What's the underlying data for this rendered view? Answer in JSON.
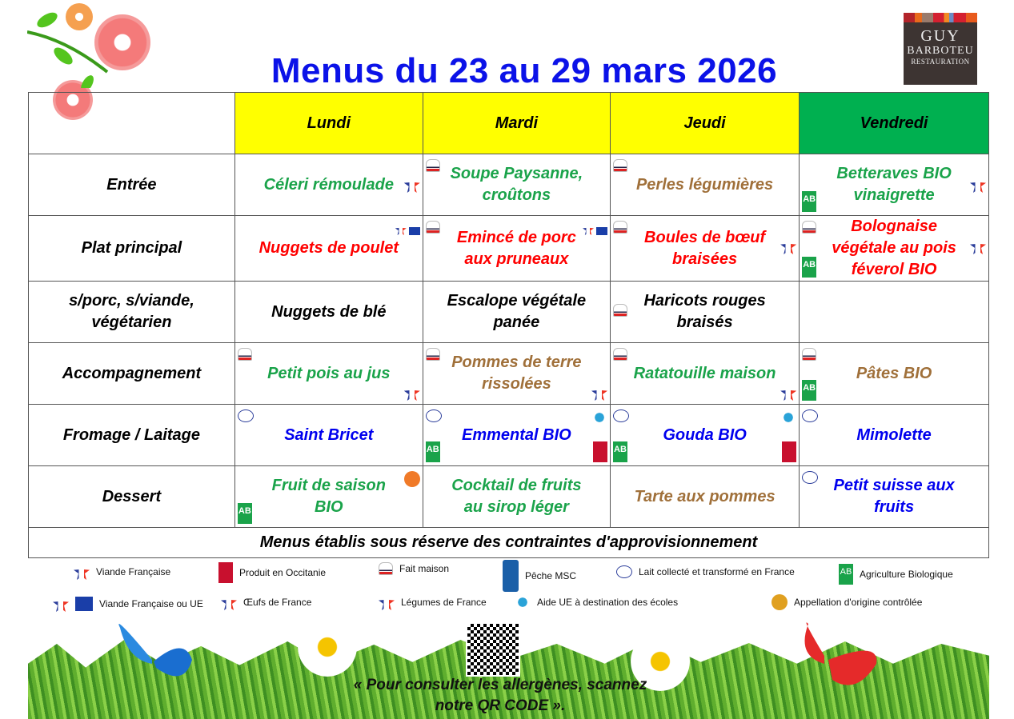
{
  "title": "Menus du 23 au 29 mars 2026",
  "logo": {
    "line1": "GUY",
    "line2": "BARBOTEU",
    "line3": "RESTAURATION"
  },
  "days": [
    "Lundi",
    "Mardi",
    "Jeudi",
    "Vendredi"
  ],
  "day_colors": [
    "#ffff00",
    "#ffff00",
    "#ffff00",
    "#00b050"
  ],
  "colors": {
    "green": "#1aa34a",
    "red": "#ff0000",
    "brown": "#a0703a",
    "blue": "#0000ee",
    "black": "#000000"
  },
  "rows": [
    {
      "label": "Entrée",
      "cells": [
        {
          "text": "Céleri rémoulade",
          "color": "green",
          "icons": [
            "legumes-de-france"
          ]
        },
        {
          "text": "Soupe Paysanne, croûtons",
          "color": "green",
          "icons": [
            "fait-maison"
          ]
        },
        {
          "text": "Perles légumières",
          "color": "brown",
          "icons": [
            "fait-maison"
          ]
        },
        {
          "text": "Betteraves BIO vinaigrette",
          "color": "green",
          "icons": [
            "agriculture-biologique",
            "legumes-de-france"
          ]
        }
      ]
    },
    {
      "label": "Plat principal",
      "cells": [
        {
          "text": "Nuggets de poulet",
          "color": "red",
          "icons": [
            "viande-francaise-ou-ue"
          ]
        },
        {
          "text": "Emincé de porc aux pruneaux",
          "color": "red",
          "icons": [
            "fait-maison",
            "viande-francaise-ou-ue"
          ]
        },
        {
          "text": "Boules de bœuf braisées",
          "color": "red",
          "icons": [
            "fait-maison",
            "viande-francaise"
          ]
        },
        {
          "text": "Bolognaise végétale au pois féverol BIO",
          "color": "red",
          "icons": [
            "fait-maison",
            "agriculture-biologique",
            "legumes-de-france"
          ]
        }
      ]
    },
    {
      "label": "s/porc, s/viande, végétarien",
      "cells": [
        {
          "text": "Nuggets de blé",
          "color": "black",
          "icons": []
        },
        {
          "text": "Escalope végétale panée",
          "color": "black",
          "icons": []
        },
        {
          "text": "Haricots rouges braisés",
          "color": "black",
          "icons": [
            "fait-maison"
          ]
        },
        {
          "text": "",
          "color": "black",
          "icons": []
        }
      ]
    },
    {
      "label": "Accompagnement",
      "cells": [
        {
          "text": "Petit pois au jus",
          "color": "green",
          "icons": [
            "fait-maison",
            "legumes-de-france"
          ]
        },
        {
          "text": "Pommes de terre rissolées",
          "color": "brown",
          "icons": [
            "fait-maison",
            "legumes-de-france"
          ]
        },
        {
          "text": "Ratatouille maison",
          "color": "green",
          "icons": [
            "fait-maison",
            "legumes-de-france"
          ]
        },
        {
          "text": "Pâtes BIO",
          "color": "brown",
          "icons": [
            "fait-maison",
            "agriculture-biologique"
          ]
        }
      ]
    },
    {
      "label": "Fromage / Laitage",
      "cells": [
        {
          "text": "Saint Bricet",
          "color": "blue",
          "icons": [
            "lait-collecte-france"
          ]
        },
        {
          "text": "Emmental BIO",
          "color": "blue",
          "icons": [
            "lait-collecte-france",
            "agriculture-biologique",
            "aide-ue-ecoles",
            "produit-en-occitanie"
          ]
        },
        {
          "text": "Gouda BIO",
          "color": "blue",
          "icons": [
            "lait-collecte-france",
            "agriculture-biologique",
            "aide-ue-ecoles",
            "produit-en-occitanie"
          ]
        },
        {
          "text": "Mimolette",
          "color": "blue",
          "icons": [
            "lait-collecte-france"
          ]
        }
      ]
    },
    {
      "label": "Dessert",
      "cells": [
        {
          "text": "Fruit de saison BIO",
          "color": "green",
          "icons": [
            "fruit-ecoles",
            "agriculture-biologique"
          ]
        },
        {
          "text": "Cocktail de fruits au sirop léger",
          "color": "green",
          "icons": []
        },
        {
          "text": "Tarte aux pommes",
          "color": "brown",
          "icons": []
        },
        {
          "text": "Petit suisse aux fruits",
          "color": "blue",
          "icons": [
            "lait-collecte-france"
          ]
        }
      ]
    }
  ],
  "footer_note": "Menus établis sous réserve des contraintes d'approvisionnement",
  "legend": [
    {
      "icon": "viande-francaise",
      "label": "Viande Française"
    },
    {
      "icon": "produit-en-occitanie",
      "label": "Produit en Occitanie"
    },
    {
      "icon": "fait-maison",
      "label": "Fait maison"
    },
    {
      "icon": "peche-msc",
      "label": "Pêche MSC"
    },
    {
      "icon": "lait-collecte-france",
      "label": "Lait collecté et transformé en France"
    },
    {
      "icon": "agriculture-biologique",
      "label": "Agriculture Biologique"
    },
    {
      "icon": "viande-francaise-ou-ue",
      "label": "Viande Française ou UE"
    },
    {
      "icon": "oeufs-de-france",
      "label": "Œufs de France"
    },
    {
      "icon": "legumes-de-france",
      "label": "Légumes de France"
    },
    {
      "icon": "aide-ue-ecoles",
      "label": "Aide UE à destination des écoles"
    },
    {
      "icon": "aoc",
      "label": "Appellation d'origine contrôlée"
    }
  ],
  "allergen_note": "« Pour consulter les allergènes, scannez notre QR CODE »."
}
